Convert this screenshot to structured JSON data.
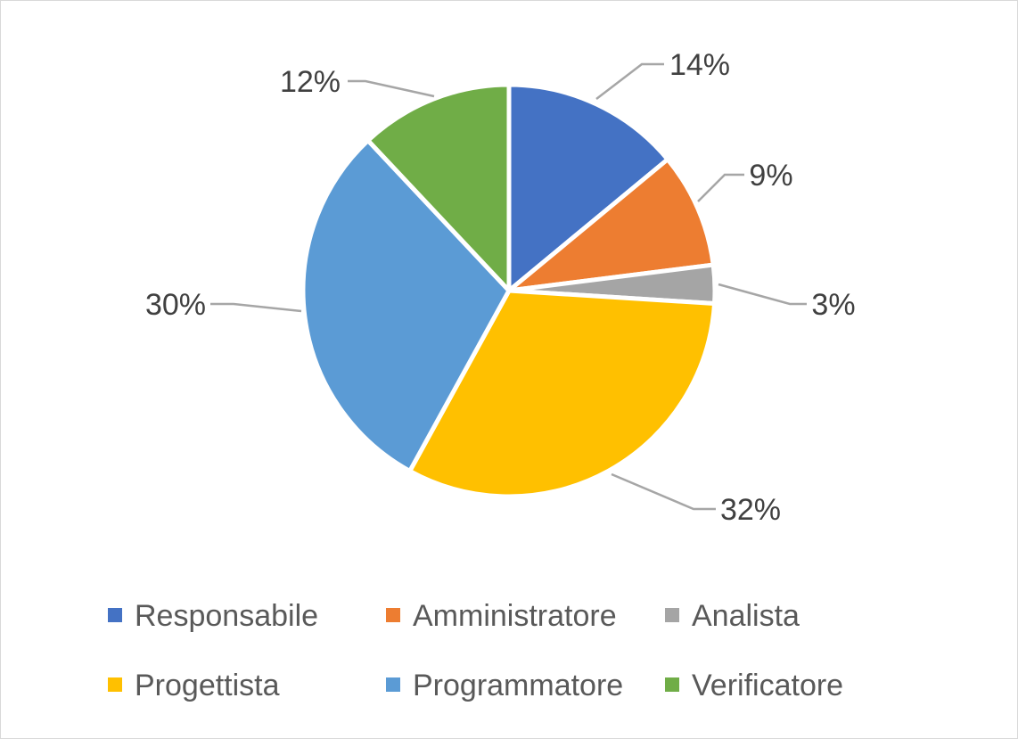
{
  "chart_data": {
    "type": "pie",
    "title": "",
    "labels_format": "percent",
    "legend_position": "bottom",
    "slices": [
      {
        "name": "Responsabile",
        "value": 14,
        "label": "14%",
        "color": "#4472C4"
      },
      {
        "name": "Amministratore",
        "value": 9,
        "label": "9%",
        "color": "#ED7D31"
      },
      {
        "name": "Analista",
        "value": 3,
        "label": "3%",
        "color": "#A5A5A5"
      },
      {
        "name": "Progettista",
        "value": 32,
        "label": "32%",
        "color": "#FFC000"
      },
      {
        "name": "Programmatore",
        "value": 30,
        "label": "30%",
        "color": "#5B9BD5"
      },
      {
        "name": "Verificatore",
        "value": 12,
        "label": "12%",
        "color": "#70AD47"
      }
    ]
  }
}
